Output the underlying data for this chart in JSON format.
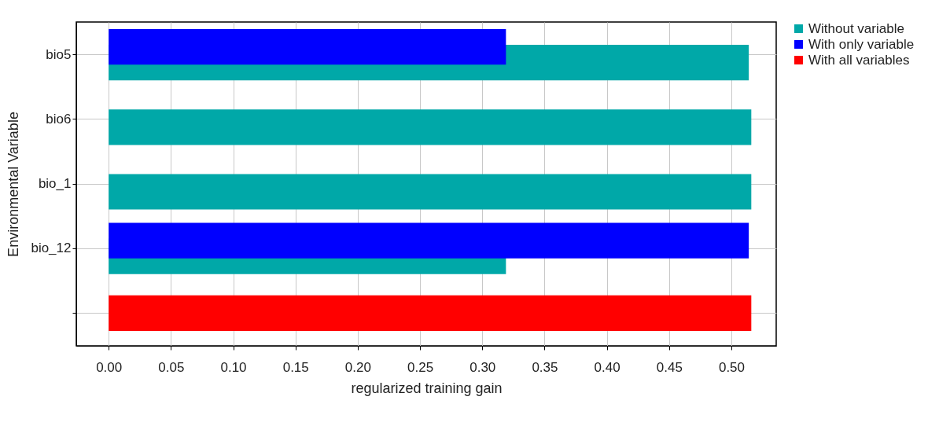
{
  "chart_data": {
    "type": "bar",
    "orientation": "horizontal",
    "xlabel": "regularized training gain",
    "ylabel": "Environmental Variable",
    "categories": [
      "bio5",
      "bio6",
      "bio_1",
      "bio_12",
      null
    ],
    "series": [
      {
        "name": "Without variable",
        "color": "#00a8a8",
        "values": [
          0.514,
          0.516,
          0.516,
          0.319,
          null
        ]
      },
      {
        "name": "With only variable",
        "color": "#0000ff",
        "values": [
          0.319,
          null,
          null,
          0.514,
          null
        ]
      },
      {
        "name": "With all variables",
        "color": "#ff0000",
        "values": [
          null,
          null,
          null,
          null,
          0.516
        ]
      }
    ],
    "xlim": [
      -0.026,
      0.536
    ],
    "xticks": [
      {
        "value": 0,
        "label": "0.00"
      },
      0.05,
      {
        "value": 0.1,
        "label": "0.10"
      },
      0.15,
      {
        "value": 0.2,
        "label": "0.20"
      },
      0.25,
      {
        "value": 0.3,
        "label": "0.30"
      },
      0.35,
      {
        "value": 0.4,
        "label": "0.40"
      },
      0.45,
      {
        "value": 0.5,
        "label": "0.50"
      }
    ],
    "grid": true,
    "legend": "right"
  }
}
